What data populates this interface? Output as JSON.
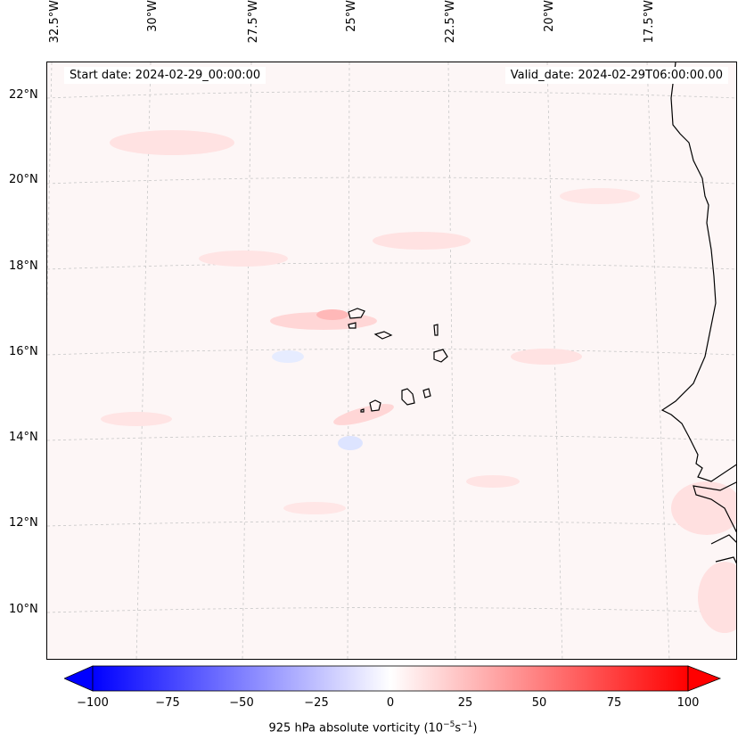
{
  "map": {
    "lon_labels": [
      "32.5°W",
      "30°W",
      "27.5°W",
      "25°W",
      "22.5°W",
      "20°W",
      "17.5°W"
    ],
    "lat_labels": [
      "22°N",
      "20°N",
      "18°N",
      "16°N",
      "14°N",
      "12°N",
      "10°N"
    ],
    "start_date": "Start date: 2024-02-29_00:00:00",
    "valid_date": "Valid_date: 2024-02-29T06:00:00.00",
    "field_colors": {
      "background": "#fdf6f6",
      "positive": "#ffdddd",
      "negative": "#e6ecff",
      "coast": "#000000"
    }
  },
  "colorbar": {
    "ticks": [
      "−100",
      "−75",
      "−50",
      "−25",
      "0",
      "25",
      "50",
      "75",
      "100"
    ],
    "min": -100,
    "max": 100,
    "label": "925 hPa absolute vorticity (10",
    "label_sup1": "−5",
    "label_mid": "s",
    "label_sup2": "−1",
    "label_end": ")",
    "colors": {
      "low": "#0000ff",
      "mid": "#ffffff",
      "high": "#ff0000"
    }
  }
}
